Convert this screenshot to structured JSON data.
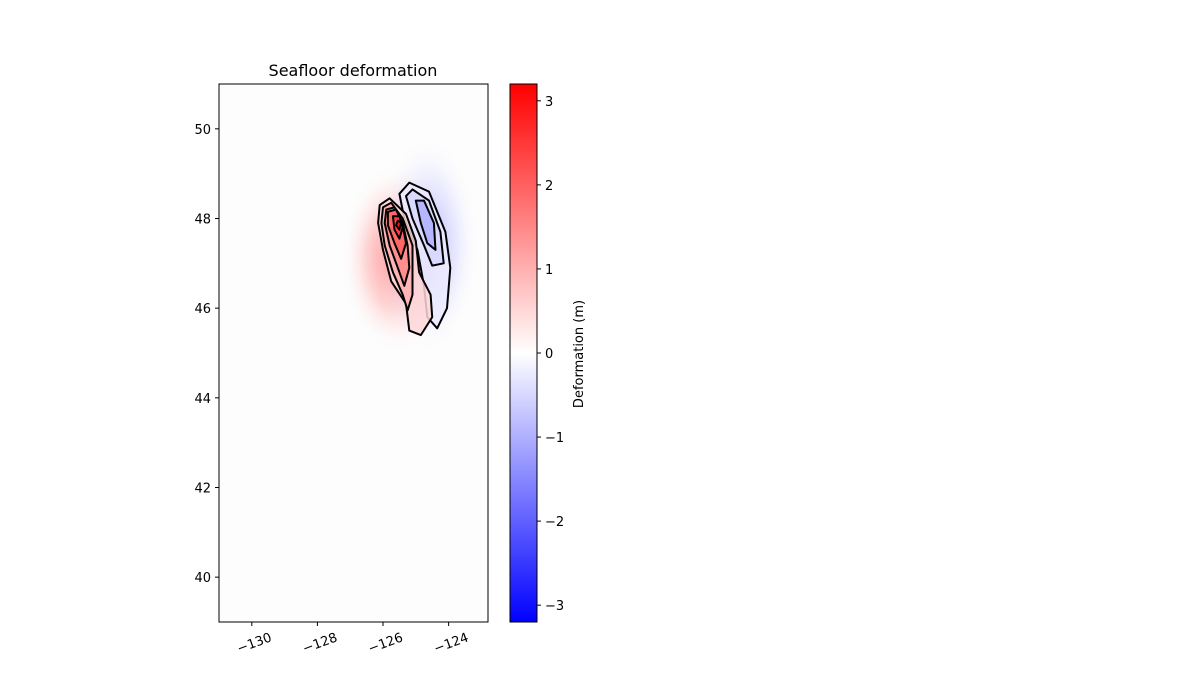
{
  "chart_data": {
    "type": "heatmap",
    "title": "Seafloor deformation",
    "xlabel": "",
    "ylabel": "",
    "xlim": [
      -131,
      -122.8
    ],
    "ylim": [
      39,
      51
    ],
    "xticks": [
      -130,
      -128,
      -126,
      -124
    ],
    "xtick_labels": [
      "−130",
      "−128",
      "−126",
      "−124"
    ],
    "yticks": [
      40,
      42,
      44,
      46,
      48,
      50
    ],
    "ytick_labels": [
      "40",
      "42",
      "44",
      "46",
      "48",
      "50"
    ],
    "grid": false,
    "colormap": "bwr",
    "colorbar": {
      "label": "Deformation (m)",
      "vmin": -3.2,
      "vmax": 3.2,
      "ticks": [
        -3,
        -2,
        -1,
        0,
        1,
        2,
        3
      ],
      "tick_labels": [
        "−3",
        "−2",
        "−1",
        "0",
        "1",
        "2",
        "3"
      ],
      "colors": [
        "#0000ff",
        "#ffffff",
        "#ff0000"
      ]
    },
    "uplift_contours": [
      {
        "level": 0.5,
        "points": [
          [
            -126.1,
            48.3
          ],
          [
            -125.8,
            48.45
          ],
          [
            -125.3,
            48.1
          ],
          [
            -125.0,
            47.5
          ],
          [
            -124.9,
            46.8
          ],
          [
            -124.55,
            46.3
          ],
          [
            -124.5,
            45.8
          ],
          [
            -124.85,
            45.4
          ],
          [
            -125.2,
            45.5
          ],
          [
            -125.3,
            46.1
          ],
          [
            -125.75,
            46.6
          ],
          [
            -126.0,
            47.3
          ],
          [
            -126.15,
            47.9
          ]
        ]
      },
      {
        "level": 1.0,
        "points": [
          [
            -126.0,
            48.25
          ],
          [
            -125.75,
            48.35
          ],
          [
            -125.4,
            48.0
          ],
          [
            -125.1,
            47.4
          ],
          [
            -125.1,
            46.7
          ],
          [
            -125.1,
            46.3
          ],
          [
            -125.25,
            45.95
          ],
          [
            -125.4,
            46.3
          ],
          [
            -125.7,
            46.8
          ],
          [
            -125.95,
            47.4
          ],
          [
            -126.05,
            47.9
          ]
        ]
      },
      {
        "level": 1.5,
        "points": [
          [
            -125.9,
            48.2
          ],
          [
            -125.65,
            48.25
          ],
          [
            -125.4,
            47.9
          ],
          [
            -125.25,
            47.4
          ],
          [
            -125.2,
            46.9
          ],
          [
            -125.35,
            46.5
          ],
          [
            -125.55,
            46.9
          ],
          [
            -125.8,
            47.4
          ],
          [
            -125.95,
            47.9
          ]
        ]
      },
      {
        "level": 2.0,
        "points": [
          [
            -125.85,
            48.15
          ],
          [
            -125.6,
            48.2
          ],
          [
            -125.4,
            47.85
          ],
          [
            -125.3,
            47.45
          ],
          [
            -125.45,
            47.1
          ],
          [
            -125.65,
            47.45
          ],
          [
            -125.85,
            47.85
          ]
        ]
      },
      {
        "level": 2.5,
        "points": [
          [
            -125.7,
            48.05
          ],
          [
            -125.5,
            48.05
          ],
          [
            -125.4,
            47.8
          ],
          [
            -125.5,
            47.55
          ],
          [
            -125.65,
            47.75
          ]
        ]
      },
      {
        "level": 3.0,
        "points": [
          [
            -125.55,
            47.95
          ],
          [
            -125.45,
            47.9
          ],
          [
            -125.5,
            47.75
          ],
          [
            -125.6,
            47.85
          ]
        ]
      }
    ],
    "subsidence_contours": [
      {
        "level": -0.25,
        "points": [
          [
            -125.5,
            48.55
          ],
          [
            -125.2,
            48.8
          ],
          [
            -124.6,
            48.6
          ],
          [
            -124.1,
            47.7
          ],
          [
            -123.95,
            46.9
          ],
          [
            -124.05,
            46.0
          ],
          [
            -124.35,
            45.55
          ],
          [
            -124.65,
            45.8
          ],
          [
            -124.75,
            46.5
          ],
          [
            -124.95,
            47.3
          ],
          [
            -125.35,
            48.0
          ]
        ]
      },
      {
        "level": -0.5,
        "points": [
          [
            -125.3,
            48.5
          ],
          [
            -125.1,
            48.65
          ],
          [
            -124.6,
            48.4
          ],
          [
            -124.25,
            47.7
          ],
          [
            -124.15,
            47.0
          ],
          [
            -124.5,
            46.95
          ],
          [
            -124.75,
            47.4
          ],
          [
            -125.1,
            48.0
          ]
        ]
      },
      {
        "level": -1.0,
        "points": [
          [
            -125.0,
            48.4
          ],
          [
            -124.75,
            48.4
          ],
          [
            -124.45,
            47.9
          ],
          [
            -124.4,
            47.3
          ],
          [
            -124.65,
            47.45
          ],
          [
            -124.85,
            47.9
          ]
        ]
      }
    ]
  }
}
